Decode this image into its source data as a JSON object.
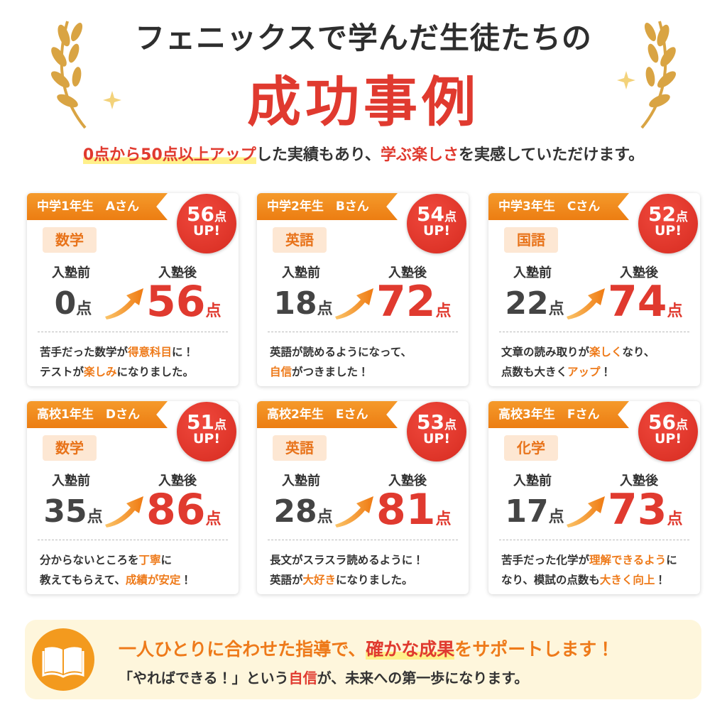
{
  "header": {
    "title": "フェニックスで学んだ生徒たちの",
    "headline": "成功事例"
  },
  "intro": [
    {
      "text": "0点から50点以上アップ",
      "style": "red-marker"
    },
    {
      "text": "した実績もあり、",
      "style": "plain"
    },
    {
      "text": "学ぶ楽しさ",
      "style": "red"
    },
    {
      "text": "を実感していただけます。",
      "style": "plain"
    }
  ],
  "labels": {
    "before": "入塾前",
    "after": "入塾後",
    "unit": "点",
    "up": "UP!"
  },
  "cards": [
    {
      "student": "中学1年生　Aさん",
      "subject": "数学",
      "gain": 56,
      "before": 0,
      "after": 56,
      "comment": [
        [
          {
            "text": "苦手だった数学が",
            "style": "plain"
          },
          {
            "text": "得意科目",
            "style": "orange"
          },
          {
            "text": "に！",
            "style": "plain"
          }
        ],
        [
          {
            "text": "テストが",
            "style": "plain"
          },
          {
            "text": "楽しみ",
            "style": "orange"
          },
          {
            "text": "になりました。",
            "style": "plain"
          }
        ]
      ]
    },
    {
      "student": "中学2年生　Bさん",
      "subject": "英語",
      "gain": 54,
      "before": 18,
      "after": 72,
      "comment": [
        [
          {
            "text": "英語が読めるようになって、",
            "style": "plain"
          }
        ],
        [
          {
            "text": "自信",
            "style": "orange"
          },
          {
            "text": "がつきました！",
            "style": "plain"
          }
        ]
      ]
    },
    {
      "student": "中学3年生　Cさん",
      "subject": "国語",
      "gain": 52,
      "before": 22,
      "after": 74,
      "comment": [
        [
          {
            "text": "文章の読み取りが",
            "style": "plain"
          },
          {
            "text": "楽しく",
            "style": "orange"
          },
          {
            "text": "なり、",
            "style": "plain"
          }
        ],
        [
          {
            "text": "点数も大きく",
            "style": "plain"
          },
          {
            "text": "アップ",
            "style": "orange"
          },
          {
            "text": "！",
            "style": "plain"
          }
        ]
      ]
    },
    {
      "student": "高校1年生　Dさん",
      "subject": "数学",
      "gain": 51,
      "before": 35,
      "after": 86,
      "comment": [
        [
          {
            "text": "分からないところを",
            "style": "plain"
          },
          {
            "text": "丁寧",
            "style": "orange"
          },
          {
            "text": "に",
            "style": "plain"
          }
        ],
        [
          {
            "text": "教えてもらえて、",
            "style": "plain"
          },
          {
            "text": "成績が安定",
            "style": "orange"
          },
          {
            "text": "！",
            "style": "plain"
          }
        ]
      ]
    },
    {
      "student": "高校2年生　Eさん",
      "subject": "英語",
      "gain": 53,
      "before": 28,
      "after": 81,
      "comment": [
        [
          {
            "text": "長文がスラスラ読めるように！",
            "style": "plain"
          }
        ],
        [
          {
            "text": "英語が",
            "style": "plain"
          },
          {
            "text": "大好き",
            "style": "orange"
          },
          {
            "text": "になりました。",
            "style": "plain"
          }
        ]
      ]
    },
    {
      "student": "高校3年生　Fさん",
      "subject": "化学",
      "gain": 56,
      "before": 17,
      "after": 73,
      "comment": [
        [
          {
            "text": "苦手だった化学が",
            "style": "plain"
          },
          {
            "text": "理解できるよう",
            "style": "orange"
          },
          {
            "text": "に",
            "style": "plain"
          }
        ],
        [
          {
            "text": "なり、模試の点数も",
            "style": "plain"
          },
          {
            "text": "大きく向上",
            "style": "orange"
          },
          {
            "text": "！",
            "style": "plain"
          }
        ]
      ]
    }
  ],
  "footer": [
    [
      {
        "text": "一人ひとりに合わせた指導で、",
        "style": "orange"
      },
      {
        "text": "確かな成果",
        "style": "red-marker"
      },
      {
        "text": "をサポートします！",
        "style": "orange"
      }
    ],
    [
      {
        "text": "「やればできる！」という",
        "style": "plain"
      },
      {
        "text": "自信",
        "style": "red"
      },
      {
        "text": "が、未来への第一歩になります。",
        "style": "plain"
      }
    ]
  ]
}
